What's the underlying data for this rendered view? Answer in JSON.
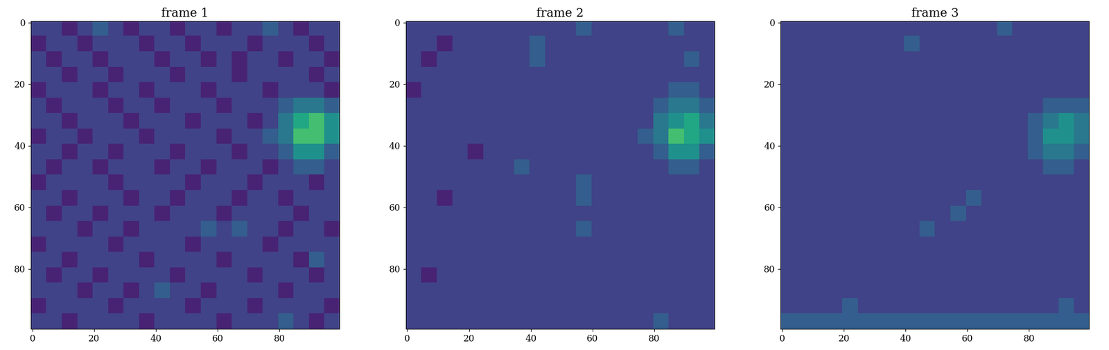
{
  "chart_data": [
    {
      "type": "heatmap",
      "title": "frame 1",
      "color": "viridis",
      "xlim": [
        -0.5,
        99.5
      ],
      "ylim": [
        99.5,
        -0.5
      ],
      "xticks": [
        0,
        20,
        40,
        60,
        80
      ],
      "yticks": [
        0,
        20,
        40,
        60,
        80
      ],
      "value_range": [
        0,
        10
      ],
      "cells": [
        [
          2,
          2,
          1,
          2,
          3,
          2,
          1,
          2,
          2,
          1,
          2,
          2,
          1,
          2,
          2,
          3,
          2,
          1,
          2,
          2
        ],
        [
          1,
          2,
          2,
          1,
          2,
          2,
          2,
          1,
          2,
          2,
          1,
          2,
          2,
          2,
          1,
          2,
          2,
          2,
          1,
          2
        ],
        [
          2,
          1,
          2,
          2,
          1,
          2,
          2,
          2,
          1,
          2,
          2,
          1,
          2,
          1,
          2,
          2,
          1,
          2,
          2,
          1
        ],
        [
          2,
          2,
          1,
          2,
          2,
          1,
          2,
          2,
          2,
          1,
          2,
          2,
          2,
          1,
          2,
          2,
          2,
          2,
          1,
          2
        ],
        [
          1,
          2,
          2,
          2,
          1,
          2,
          2,
          1,
          2,
          2,
          2,
          1,
          2,
          2,
          2,
          1,
          2,
          2,
          2,
          1
        ],
        [
          2,
          1,
          2,
          2,
          2,
          1,
          2,
          2,
          1,
          2,
          2,
          2,
          1,
          2,
          2,
          2,
          3,
          4,
          4,
          3
        ],
        [
          2,
          2,
          1,
          2,
          2,
          2,
          1,
          2,
          2,
          2,
          1,
          2,
          2,
          2,
          1,
          2,
          4,
          6,
          7,
          5
        ],
        [
          1,
          2,
          2,
          1,
          2,
          2,
          2,
          1,
          2,
          2,
          2,
          2,
          1,
          2,
          2,
          3,
          4,
          7,
          7,
          5
        ],
        [
          2,
          2,
          1,
          2,
          2,
          1,
          2,
          2,
          2,
          1,
          2,
          2,
          2,
          1,
          2,
          2,
          3,
          5,
          5,
          3
        ],
        [
          2,
          1,
          2,
          2,
          1,
          2,
          2,
          2,
          1,
          2,
          2,
          1,
          2,
          2,
          2,
          1,
          2,
          3,
          3,
          2
        ],
        [
          1,
          2,
          2,
          2,
          2,
          1,
          2,
          2,
          2,
          2,
          1,
          2,
          2,
          2,
          1,
          2,
          2,
          2,
          1,
          2
        ],
        [
          2,
          2,
          1,
          2,
          2,
          2,
          1,
          2,
          2,
          1,
          2,
          2,
          2,
          1,
          2,
          2,
          1,
          2,
          2,
          2
        ],
        [
          2,
          1,
          2,
          2,
          1,
          2,
          2,
          2,
          1,
          2,
          2,
          2,
          1,
          2,
          2,
          2,
          2,
          1,
          2,
          2
        ],
        [
          2,
          2,
          2,
          1,
          2,
          2,
          1,
          2,
          2,
          2,
          2,
          3,
          2,
          3,
          2,
          2,
          1,
          2,
          2,
          1
        ],
        [
          1,
          2,
          2,
          2,
          2,
          1,
          2,
          2,
          2,
          2,
          1,
          2,
          2,
          2,
          2,
          1,
          2,
          2,
          2,
          2
        ],
        [
          2,
          2,
          1,
          2,
          2,
          2,
          2,
          1,
          2,
          2,
          2,
          2,
          1,
          2,
          2,
          2,
          2,
          1,
          3,
          2
        ],
        [
          2,
          1,
          2,
          2,
          1,
          2,
          2,
          2,
          2,
          1,
          2,
          2,
          2,
          2,
          1,
          2,
          2,
          2,
          1,
          2
        ],
        [
          2,
          2,
          2,
          1,
          2,
          2,
          1,
          2,
          3,
          2,
          2,
          1,
          2,
          2,
          2,
          2,
          1,
          2,
          2,
          2
        ],
        [
          1,
          2,
          2,
          2,
          2,
          1,
          2,
          2,
          2,
          2,
          1,
          2,
          2,
          2,
          1,
          2,
          2,
          2,
          2,
          1
        ],
        [
          2,
          2,
          1,
          2,
          2,
          2,
          2,
          1,
          2,
          2,
          2,
          2,
          1,
          2,
          2,
          2,
          3,
          2,
          1,
          2
        ]
      ]
    },
    {
      "type": "heatmap",
      "title": "frame 2",
      "color": "viridis",
      "xlim": [
        -0.5,
        99.5
      ],
      "ylim": [
        99.5,
        -0.5
      ],
      "xticks": [
        0,
        20,
        40,
        60,
        80
      ],
      "yticks": [
        0,
        20,
        40,
        60,
        80
      ],
      "value_range": [
        0,
        10
      ],
      "cells": [
        [
          2,
          2,
          2,
          2,
          2,
          2,
          2,
          2,
          2,
          2,
          2,
          3,
          2,
          2,
          2,
          2,
          2,
          3,
          2,
          2
        ],
        [
          2,
          2,
          1,
          2,
          2,
          2,
          2,
          2,
          3,
          2,
          2,
          2,
          2,
          2,
          2,
          2,
          2,
          2,
          2,
          2
        ],
        [
          2,
          1,
          2,
          2,
          2,
          2,
          2,
          2,
          3,
          2,
          2,
          2,
          2,
          2,
          2,
          2,
          2,
          2,
          3,
          2
        ],
        [
          2,
          2,
          2,
          2,
          2,
          2,
          2,
          2,
          2,
          2,
          2,
          2,
          2,
          2,
          2,
          2,
          2,
          2,
          2,
          2
        ],
        [
          1,
          2,
          2,
          2,
          2,
          2,
          2,
          2,
          2,
          2,
          2,
          2,
          2,
          2,
          2,
          2,
          2,
          3,
          3,
          2
        ],
        [
          2,
          2,
          2,
          2,
          2,
          2,
          2,
          2,
          2,
          2,
          2,
          2,
          2,
          2,
          2,
          2,
          3,
          4,
          4,
          3
        ],
        [
          2,
          2,
          2,
          2,
          2,
          2,
          2,
          2,
          2,
          2,
          2,
          2,
          2,
          2,
          2,
          2,
          4,
          5,
          6,
          4
        ],
        [
          2,
          2,
          2,
          2,
          2,
          2,
          2,
          2,
          2,
          2,
          2,
          2,
          2,
          2,
          2,
          3,
          4,
          7,
          6,
          5
        ],
        [
          2,
          2,
          2,
          2,
          1,
          2,
          2,
          2,
          2,
          2,
          2,
          2,
          2,
          2,
          2,
          2,
          3,
          5,
          5,
          3
        ],
        [
          2,
          2,
          2,
          2,
          2,
          2,
          2,
          3,
          2,
          2,
          2,
          2,
          2,
          2,
          2,
          2,
          2,
          3,
          3,
          2
        ],
        [
          2,
          2,
          2,
          2,
          2,
          2,
          2,
          2,
          2,
          2,
          2,
          3,
          2,
          2,
          2,
          2,
          2,
          2,
          2,
          2
        ],
        [
          2,
          2,
          1,
          2,
          2,
          2,
          2,
          2,
          2,
          2,
          2,
          3,
          2,
          2,
          2,
          2,
          2,
          2,
          2,
          2
        ],
        [
          2,
          2,
          2,
          2,
          2,
          2,
          2,
          2,
          2,
          2,
          2,
          2,
          2,
          2,
          2,
          2,
          2,
          2,
          2,
          2
        ],
        [
          2,
          2,
          2,
          2,
          2,
          2,
          2,
          2,
          2,
          2,
          2,
          3,
          2,
          2,
          2,
          2,
          2,
          2,
          2,
          2
        ],
        [
          2,
          2,
          2,
          2,
          2,
          2,
          2,
          2,
          2,
          2,
          2,
          2,
          2,
          2,
          2,
          2,
          2,
          2,
          2,
          2
        ],
        [
          2,
          2,
          2,
          2,
          2,
          2,
          2,
          2,
          2,
          2,
          2,
          2,
          2,
          2,
          2,
          2,
          2,
          2,
          2,
          2
        ],
        [
          2,
          1,
          2,
          2,
          2,
          2,
          2,
          2,
          2,
          2,
          2,
          2,
          2,
          2,
          2,
          2,
          2,
          2,
          2,
          2
        ],
        [
          2,
          2,
          2,
          2,
          2,
          2,
          2,
          2,
          2,
          2,
          2,
          2,
          2,
          2,
          2,
          2,
          2,
          2,
          2,
          2
        ],
        [
          2,
          2,
          2,
          2,
          2,
          2,
          2,
          2,
          2,
          2,
          2,
          2,
          2,
          2,
          2,
          2,
          2,
          2,
          2,
          2
        ],
        [
          2,
          2,
          2,
          2,
          2,
          2,
          2,
          2,
          2,
          2,
          2,
          2,
          2,
          2,
          2,
          2,
          3,
          2,
          2,
          2
        ]
      ]
    },
    {
      "type": "heatmap",
      "title": "frame 3",
      "color": "viridis",
      "xlim": [
        -0.5,
        99.5
      ],
      "ylim": [
        99.5,
        -0.5
      ],
      "xticks": [
        0,
        20,
        40,
        60,
        80
      ],
      "yticks": [
        0,
        20,
        40,
        60,
        80
      ],
      "value_range": [
        0,
        10
      ],
      "cells": [
        [
          2,
          2,
          2,
          2,
          2,
          2,
          2,
          2,
          2,
          2,
          2,
          2,
          2,
          2,
          3,
          2,
          2,
          2,
          2,
          2
        ],
        [
          2,
          2,
          2,
          2,
          2,
          2,
          2,
          2,
          3,
          2,
          2,
          2,
          2,
          2,
          2,
          2,
          2,
          2,
          2,
          2
        ],
        [
          2,
          2,
          2,
          2,
          2,
          2,
          2,
          2,
          2,
          2,
          2,
          2,
          2,
          2,
          2,
          2,
          2,
          2,
          2,
          2
        ],
        [
          2,
          2,
          2,
          2,
          2,
          2,
          2,
          2,
          2,
          2,
          2,
          2,
          2,
          2,
          2,
          2,
          2,
          2,
          2,
          2
        ],
        [
          2,
          2,
          2,
          2,
          2,
          2,
          2,
          2,
          2,
          2,
          2,
          2,
          2,
          2,
          2,
          2,
          2,
          2,
          2,
          2
        ],
        [
          2,
          2,
          2,
          2,
          2,
          2,
          2,
          2,
          2,
          2,
          2,
          2,
          2,
          2,
          2,
          2,
          2,
          3,
          3,
          3
        ],
        [
          2,
          2,
          2,
          2,
          2,
          2,
          2,
          2,
          2,
          2,
          2,
          2,
          2,
          2,
          2,
          2,
          3,
          4,
          5,
          4
        ],
        [
          2,
          2,
          2,
          2,
          2,
          2,
          2,
          2,
          2,
          2,
          2,
          2,
          2,
          2,
          2,
          2,
          3,
          5,
          5,
          4
        ],
        [
          2,
          2,
          2,
          2,
          2,
          2,
          2,
          2,
          2,
          2,
          2,
          2,
          2,
          2,
          2,
          2,
          3,
          4,
          4,
          3
        ],
        [
          2,
          2,
          2,
          2,
          2,
          2,
          2,
          2,
          2,
          2,
          2,
          2,
          2,
          2,
          2,
          2,
          2,
          3,
          3,
          2
        ],
        [
          2,
          2,
          2,
          2,
          2,
          2,
          2,
          2,
          2,
          2,
          2,
          2,
          2,
          2,
          2,
          2,
          2,
          2,
          2,
          2
        ],
        [
          2,
          2,
          2,
          2,
          2,
          2,
          2,
          2,
          2,
          2,
          2,
          2,
          3,
          2,
          2,
          2,
          2,
          2,
          2,
          2
        ],
        [
          2,
          2,
          2,
          2,
          2,
          2,
          2,
          2,
          2,
          2,
          2,
          3,
          2,
          2,
          2,
          2,
          2,
          2,
          2,
          2
        ],
        [
          2,
          2,
          2,
          2,
          2,
          2,
          2,
          2,
          2,
          3,
          2,
          2,
          2,
          2,
          2,
          2,
          2,
          2,
          2,
          2
        ],
        [
          2,
          2,
          2,
          2,
          2,
          2,
          2,
          2,
          2,
          2,
          2,
          2,
          2,
          2,
          2,
          2,
          2,
          2,
          2,
          2
        ],
        [
          2,
          2,
          2,
          2,
          2,
          2,
          2,
          2,
          2,
          2,
          2,
          2,
          2,
          2,
          2,
          2,
          2,
          2,
          2,
          2
        ],
        [
          2,
          2,
          2,
          2,
          2,
          2,
          2,
          2,
          2,
          2,
          2,
          2,
          2,
          2,
          2,
          2,
          2,
          2,
          2,
          2
        ],
        [
          2,
          2,
          2,
          2,
          2,
          2,
          2,
          2,
          2,
          2,
          2,
          2,
          2,
          2,
          2,
          2,
          2,
          2,
          2,
          2
        ],
        [
          2,
          2,
          2,
          2,
          3,
          2,
          2,
          2,
          2,
          2,
          2,
          2,
          2,
          2,
          2,
          2,
          2,
          2,
          3,
          2
        ],
        [
          3,
          3,
          3,
          3,
          3,
          3,
          3,
          3,
          3,
          3,
          3,
          3,
          3,
          3,
          3,
          3,
          3,
          3,
          3,
          3
        ]
      ]
    }
  ]
}
